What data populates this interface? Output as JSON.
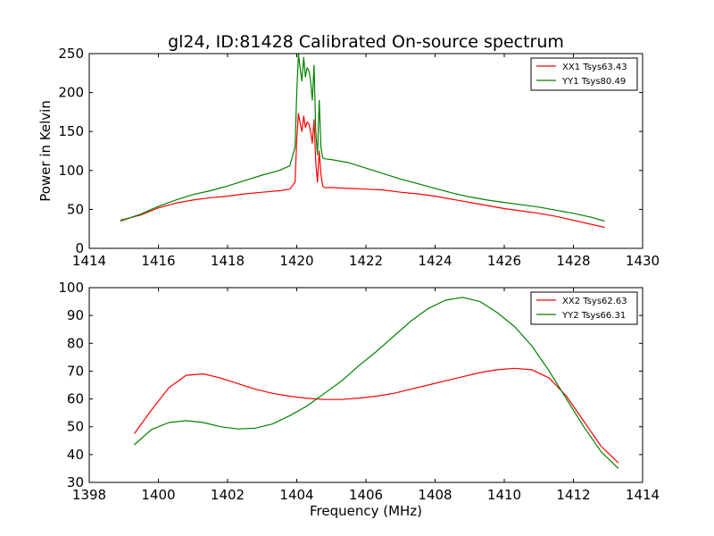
{
  "chart_data": [
    {
      "type": "line",
      "title": "gl24, ID:81428 Calibrated On-source spectrum",
      "xlabel": "",
      "ylabel": "Power in Kelvin",
      "xlim": [
        1414,
        1430
      ],
      "ylim": [
        0,
        250
      ],
      "xticks": [
        "1414",
        "1416",
        "1418",
        "1420",
        "1422",
        "1424",
        "1426",
        "1428",
        "1430"
      ],
      "yticks": [
        "0",
        "50",
        "100",
        "150",
        "200",
        "250"
      ],
      "grid": false,
      "legend_position": "top-right",
      "series": [
        {
          "name": "XX1 Tsys63.43",
          "color": "#ff0000",
          "x": [
            1414.9,
            1415.5,
            1416,
            1416.5,
            1417,
            1417.5,
            1418,
            1418.5,
            1419,
            1419.5,
            1419.8,
            1419.95,
            1420.0,
            1420.05,
            1420.1,
            1420.15,
            1420.2,
            1420.25,
            1420.3,
            1420.35,
            1420.4,
            1420.45,
            1420.5,
            1420.55,
            1420.6,
            1420.65,
            1420.7,
            1420.75,
            1420.8,
            1421,
            1421.5,
            1422,
            1422.5,
            1423,
            1423.5,
            1424,
            1424.5,
            1425,
            1425.5,
            1426,
            1426.5,
            1427,
            1427.5,
            1428,
            1428.5,
            1428.9
          ],
          "y": [
            36,
            43,
            52,
            58,
            62,
            65,
            67,
            70,
            72,
            74,
            76,
            85,
            140,
            173,
            160,
            150,
            170,
            155,
            162,
            160,
            150,
            135,
            165,
            110,
            85,
            125,
            95,
            80,
            78,
            78,
            77,
            76,
            75,
            72,
            70,
            67,
            63,
            59,
            55,
            51,
            48,
            45,
            41,
            36,
            31,
            27
          ]
        },
        {
          "name": "YY1 Tsys80.49",
          "color": "#008000",
          "x": [
            1414.9,
            1415.5,
            1416,
            1416.5,
            1417,
            1417.5,
            1418,
            1418.5,
            1419,
            1419.5,
            1419.8,
            1419.95,
            1420.0,
            1420.05,
            1420.1,
            1420.15,
            1420.2,
            1420.25,
            1420.3,
            1420.35,
            1420.4,
            1420.45,
            1420.5,
            1420.55,
            1420.6,
            1420.65,
            1420.7,
            1420.75,
            1420.8,
            1421,
            1421.5,
            1422,
            1422.5,
            1423,
            1423.5,
            1424,
            1424.5,
            1425,
            1425.5,
            1426,
            1426.5,
            1427,
            1427.5,
            1428,
            1428.5,
            1428.9
          ],
          "y": [
            35,
            44,
            54,
            62,
            69,
            74,
            80,
            87,
            94,
            100,
            106,
            130,
            200,
            250,
            230,
            215,
            245,
            220,
            232,
            228,
            215,
            190,
            235,
            150,
            120,
            190,
            130,
            116,
            115,
            114,
            110,
            103,
            96,
            89,
            83,
            77,
            71,
            66,
            62,
            59,
            56,
            53,
            49,
            45,
            40,
            35
          ]
        }
      ]
    },
    {
      "type": "line",
      "title": "",
      "xlabel": "Frequency (MHz)",
      "ylabel": "",
      "xlim": [
        1398,
        1414
      ],
      "ylim": [
        30,
        100
      ],
      "xticks": [
        "1398",
        "1400",
        "1402",
        "1404",
        "1406",
        "1408",
        "1410",
        "1412",
        "1414"
      ],
      "yticks": [
        "30",
        "40",
        "50",
        "60",
        "70",
        "80",
        "90",
        "100"
      ],
      "grid": false,
      "legend_position": "top-right",
      "series": [
        {
          "name": "XX2 Tsys62.63",
          "color": "#ff0000",
          "x": [
            1399.3,
            1399.8,
            1400.3,
            1400.8,
            1401.3,
            1401.8,
            1402.3,
            1402.8,
            1403.3,
            1403.8,
            1404.3,
            1404.8,
            1405.3,
            1405.8,
            1406.3,
            1406.8,
            1407.3,
            1407.8,
            1408.3,
            1408.8,
            1409.3,
            1409.8,
            1410.3,
            1410.8,
            1411.3,
            1411.8,
            1412.3,
            1412.8,
            1413.3
          ],
          "y": [
            47.5,
            56,
            64,
            68.5,
            69,
            67.5,
            65.5,
            63.5,
            62,
            61,
            60.2,
            59.8,
            59.8,
            60.3,
            61,
            62,
            63.5,
            65,
            66.5,
            68,
            69.5,
            70.5,
            71,
            70.5,
            67.5,
            61,
            52,
            43,
            37
          ]
        },
        {
          "name": "YY2 Tsys66.31",
          "color": "#008000",
          "x": [
            1399.3,
            1399.8,
            1400.3,
            1400.8,
            1401.3,
            1401.8,
            1402.3,
            1402.8,
            1403.3,
            1403.8,
            1404.3,
            1404.8,
            1405.3,
            1405.8,
            1406.3,
            1406.8,
            1407.3,
            1407.8,
            1408.3,
            1408.8,
            1409.3,
            1409.8,
            1410.3,
            1410.8,
            1411.3,
            1411.8,
            1412.3,
            1412.8,
            1413.3
          ],
          "y": [
            43.5,
            49,
            51.5,
            52.2,
            51.5,
            50,
            49.2,
            49.5,
            51,
            54,
            57.5,
            62,
            66.5,
            72,
            77,
            82.5,
            88,
            92.5,
            95.5,
            96.5,
            95,
            91,
            86,
            79,
            70,
            60,
            50,
            41,
            35
          ]
        }
      ]
    }
  ]
}
